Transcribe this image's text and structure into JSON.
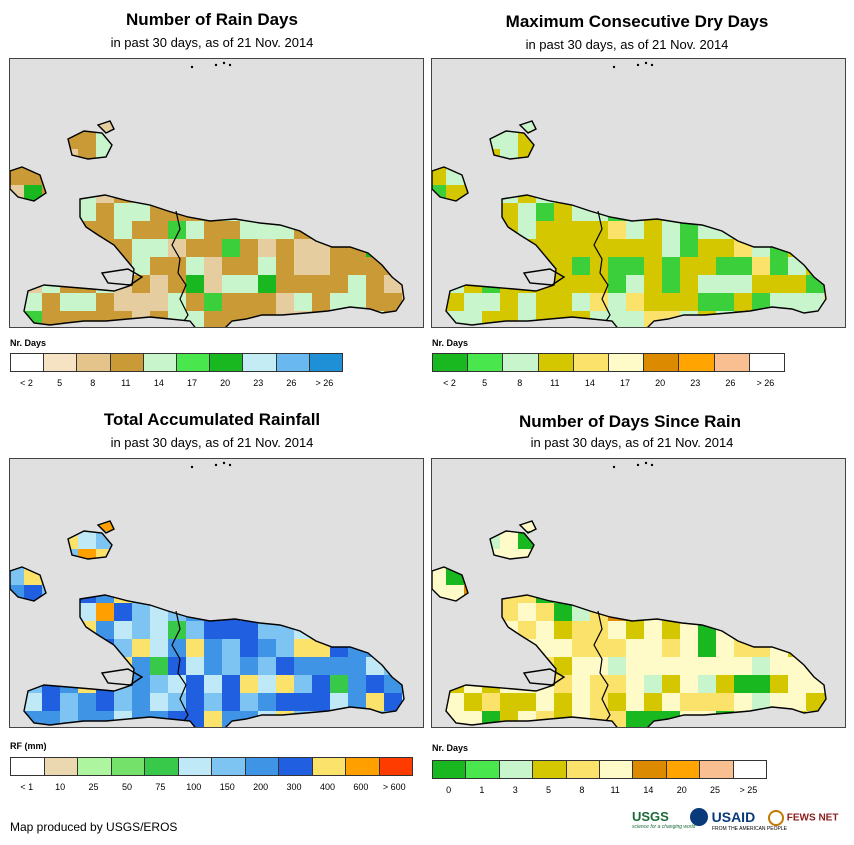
{
  "panels": [
    {
      "id": "rain-days",
      "title": "Number of Rain Days",
      "subtitle": "in past 30 days, as of 21 Nov. 2014",
      "legend_title": "Nr. Days",
      "legend_colors": [
        "#ffffff",
        "#f5e3c3",
        "#e4c48a",
        "#c99a35",
        "#c8f5cc",
        "#49e64e",
        "#19b820",
        "#c4ecf5",
        "#6ab8f0",
        "#1f8fd6"
      ],
      "legend_labels": [
        "< 2",
        "5",
        "8",
        "11",
        "14",
        "17",
        "20",
        "23",
        "26",
        "> 26"
      ],
      "palette": [
        "#e6cda0",
        "#c99a35",
        "#c8f5cc",
        "#3ccf3c",
        "#19b820"
      ],
      "weights": [
        0.18,
        0.47,
        0.25,
        0.06,
        0.04
      ]
    },
    {
      "id": "max-dry-days",
      "title": "Maximum Consecutive Dry Days",
      "subtitle": "in past 30 days, as of 21 Nov. 2014",
      "legend_title": "Nr. Days",
      "legend_colors": [
        "#19b820",
        "#49e64e",
        "#c8f5cc",
        "#d4c700",
        "#fbe26a",
        "#fffbc8",
        "#dc8a00",
        "#ffa400",
        "#f9bf90",
        "#ffffff"
      ],
      "legend_labels": [
        "< 2",
        "5",
        "8",
        "11",
        "14",
        "17",
        "20",
        "23",
        "26",
        "> 26"
      ],
      "palette": [
        "#d4c700",
        "#c8f5cc",
        "#3ccf3c",
        "#fbe26a"
      ],
      "weights": [
        0.45,
        0.28,
        0.2,
        0.07
      ]
    },
    {
      "id": "total-rainfall",
      "title": "Total Accumulated Rainfall",
      "subtitle": "in past 30 days, as of 21 Nov. 2014",
      "legend_title": "RF (mm)",
      "legend_colors": [
        "#ffffff",
        "#ecd8b0",
        "#aef5a0",
        "#74e26a",
        "#39c94a",
        "#bfe9f7",
        "#7ec4f2",
        "#3f94e6",
        "#1f5fe0",
        "#fbe26a",
        "#ff9f00",
        "#ff3c00"
      ],
      "legend_labels": [
        "< 1",
        "10",
        "25",
        "50",
        "75",
        "100",
        "150",
        "200",
        "300",
        "400",
        "600",
        "> 600"
      ],
      "palette": [
        "#7ec4f2",
        "#3f94e6",
        "#1f5fe0",
        "#fbe26a",
        "#bfe9f7",
        "#ff9f00",
        "#39c94a"
      ],
      "weights": [
        0.3,
        0.25,
        0.15,
        0.12,
        0.1,
        0.04,
        0.04
      ]
    },
    {
      "id": "days-since-rain",
      "title": "Number of Days Since Rain",
      "subtitle": "in past 30 days, as of 21 Nov. 2014",
      "legend_title": "Nr. Days",
      "legend_colors": [
        "#19b820",
        "#49e64e",
        "#c8f5cc",
        "#d4c700",
        "#fbe26a",
        "#fffbc8",
        "#dc8a00",
        "#ffa400",
        "#f9bf90",
        "#ffffff"
      ],
      "legend_labels": [
        "0",
        "1",
        "3",
        "5",
        "8",
        "11",
        "14",
        "20",
        "25",
        "> 25"
      ],
      "palette": [
        "#fffbc8",
        "#fbe26a",
        "#d4c700",
        "#19b820",
        "#dc8a00",
        "#c8f5cc"
      ],
      "weights": [
        0.42,
        0.2,
        0.18,
        0.1,
        0.04,
        0.06
      ]
    }
  ],
  "footer": {
    "credit": "Map produced by USGS/EROS",
    "logos": [
      "USGS",
      "USAID",
      "FEWS NET"
    ],
    "logo_taglines": [
      "science for a changing world",
      "FROM THE AMERICAN PEOPLE"
    ]
  }
}
